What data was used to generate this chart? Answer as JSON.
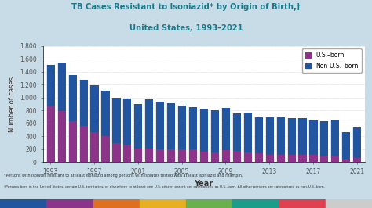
{
  "title_line1": "TB Cases Resistant to Isoniazid* by Origin of Birth,†",
  "title_line2": "United States, 1993–2021",
  "xlabel": "Year",
  "ylabel": "Number of cases",
  "background_color": "#c8dce8",
  "plot_bg_color": "#ffffff",
  "title_color": "#1a7a8a",
  "footnote1": "*Persons with isolates resistant to at least isoniazid among persons with isolates tested with at least isoniazid and rifampin.",
  "footnote2": "†Persons born in the United States, certain U.S. territories, or elsewhere to at least one U.S. citizen parent are categorized as U.S.-born. All other persons are categorized as non-U.S.-born.",
  "years": [
    1993,
    1994,
    1995,
    1996,
    1997,
    1998,
    1999,
    2000,
    2001,
    2002,
    2003,
    2004,
    2005,
    2006,
    2007,
    2008,
    2009,
    2010,
    2011,
    2012,
    2013,
    2014,
    2015,
    2016,
    2017,
    2018,
    2019,
    2020,
    2021
  ],
  "us_born": [
    880,
    790,
    630,
    560,
    470,
    400,
    290,
    270,
    215,
    215,
    200,
    195,
    200,
    195,
    165,
    155,
    190,
    175,
    150,
    135,
    120,
    120,
    115,
    115,
    110,
    105,
    100,
    55,
    65
  ],
  "non_us_born": [
    630,
    750,
    720,
    720,
    725,
    710,
    710,
    720,
    690,
    760,
    740,
    720,
    680,
    660,
    660,
    645,
    650,
    575,
    620,
    560,
    570,
    570,
    570,
    570,
    540,
    530,
    560,
    410,
    470
  ],
  "us_born_color": "#8b3489",
  "non_us_born_color": "#2255a0",
  "ylim": [
    0,
    1800
  ],
  "yticks": [
    0,
    200,
    400,
    600,
    800,
    1000,
    1200,
    1400,
    1600,
    1800
  ],
  "xtick_labels": [
    "1993",
    "1997",
    "2001",
    "2005",
    "2009",
    "2013",
    "2017",
    "2021"
  ],
  "xtick_positions": [
    1993,
    1997,
    2001,
    2005,
    2009,
    2013,
    2017,
    2021
  ],
  "bar_width": 0.8,
  "legend_labels": [
    "U.S.–born",
    "Non-U.S.–born"
  ],
  "bar_colors_bottom": [
    "#2255a0",
    "#8b3489",
    "#e07020",
    "#e8b020",
    "#6ab04c",
    "#1a9e8a",
    "#e04050",
    "#999999"
  ]
}
